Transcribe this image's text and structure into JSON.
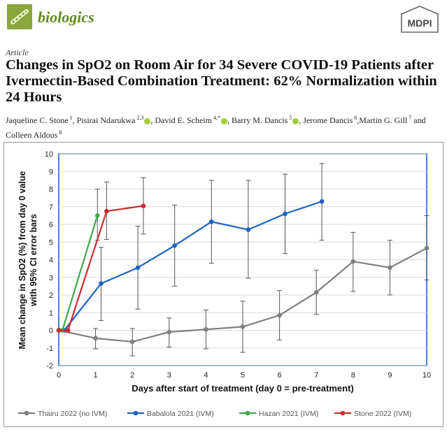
{
  "header": {
    "journal_name": "biologics",
    "publisher": "MDPI"
  },
  "article": {
    "type_label": "Article",
    "title": "Changes in SpO2 on Room Air for 34 Severe COVID-19 Patients after Ivermectin-Based Combination Treatment: 62% Normalization within 24 Hours",
    "authors": [
      {
        "name": "Jaqueline C. Stone",
        "sup": "1",
        "orcid": false,
        "sep": ", "
      },
      {
        "name": "Pisirai Ndarukwa",
        "sup": "2,3",
        "orcid": true,
        "sep": ", "
      },
      {
        "name": "David E. Scheim",
        "sup": "4,*",
        "orcid": true,
        "sep": ", "
      },
      {
        "name": "Barry M. Dancis",
        "sup": "5",
        "orcid": true,
        "sep": ", "
      },
      {
        "name": "Jerome Dancis",
        "sup": "6",
        "orcid": false,
        "sep": ","
      },
      {
        "name": "Martin G. Gill",
        "sup": "7",
        "orcid": false,
        "sep": " and "
      },
      {
        "name": "Colleen Aldous",
        "sup": "8",
        "orcid": false,
        "sep": ""
      }
    ]
  },
  "chart_data": {
    "type": "line",
    "title": "",
    "xlabel": "Days after start of treatment (day 0 = pre-treatment)",
    "ylabel_line1": "Mean change in SpO2 (%) from day 0 value",
    "ylabel_line2": "with 95% CI error bars",
    "xlim": [
      0,
      10
    ],
    "ylim": [
      -2,
      10
    ],
    "xticks": [
      0,
      1,
      2,
      3,
      4,
      5,
      6,
      7,
      8,
      9,
      10
    ],
    "yticks": [
      -2,
      -1,
      0,
      1,
      2,
      3,
      4,
      5,
      6,
      7,
      8,
      9,
      10
    ],
    "grid": true,
    "legend_position": "bottom",
    "series": [
      {
        "name": "Thairu 2022 (no IVM)",
        "color": "#7f7f7f",
        "x": [
          0,
          1,
          2,
          3,
          4,
          5,
          6,
          7,
          8,
          9,
          10
        ],
        "y": [
          0,
          -0.45,
          -0.65,
          -0.1,
          0.05,
          0.2,
          0.85,
          2.15,
          3.9,
          3.55,
          4.65
        ],
        "ci_low": [
          null,
          -1.05,
          -1.45,
          -0.95,
          -1.05,
          -1.25,
          -0.55,
          0.9,
          2.2,
          2.0,
          2.85
        ],
        "ci_high": [
          null,
          0.1,
          0.1,
          0.7,
          1.15,
          1.65,
          2.25,
          3.4,
          5.55,
          5.1,
          6.5
        ]
      },
      {
        "name": "Babalola 2021 (IVM)",
        "color": "#1f63c2",
        "x": [
          0,
          0.15,
          1.15,
          2.15,
          3.15,
          4.15,
          5.15,
          6.15,
          7.15
        ],
        "y": [
          0,
          0,
          2.65,
          3.55,
          4.8,
          6.15,
          5.7,
          6.6,
          7.3
        ],
        "ci_low": [
          null,
          null,
          0.55,
          1.2,
          2.5,
          3.8,
          2.95,
          4.35,
          5.1
        ],
        "ci_high": [
          null,
          null,
          4.7,
          5.9,
          7.1,
          8.5,
          8.5,
          8.85,
          9.45
        ]
      },
      {
        "name": "Hazan 2021 (IVM)",
        "color": "#44a84a",
        "x": [
          0,
          0.1,
          1.05
        ],
        "y": [
          0,
          0,
          6.5
        ],
        "ci_low": [
          null,
          null,
          5.1
        ],
        "ci_high": [
          null,
          null,
          8.0
        ]
      },
      {
        "name": "Stone 2022 (IVM)",
        "color": "#cc2a2a",
        "x": [
          0,
          0.25,
          1.3,
          2.3
        ],
        "y": [
          0,
          0,
          6.75,
          7.05
        ],
        "ci_low": [
          null,
          null,
          5.15,
          5.45
        ],
        "ci_high": [
          null,
          null,
          8.4,
          8.65
        ]
      }
    ]
  }
}
